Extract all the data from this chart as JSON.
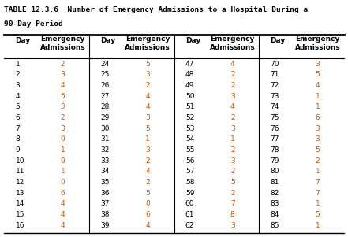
{
  "title_line1": "TABLE 12.3.6  Number of Emergency Admissions to a Hospital During a",
  "title_line2": "90-Day Period",
  "col1_days": [
    1,
    2,
    3,
    4,
    5,
    6,
    7,
    8,
    9,
    10,
    11,
    12,
    13,
    14,
    15,
    16
  ],
  "col1_adm": [
    2,
    3,
    4,
    5,
    3,
    2,
    3,
    0,
    1,
    0,
    1,
    0,
    6,
    4,
    4,
    4
  ],
  "col2_days": [
    24,
    25,
    26,
    27,
    28,
    29,
    30,
    31,
    32,
    33,
    34,
    35,
    36,
    37,
    38,
    39
  ],
  "col2_adm": [
    5,
    3,
    2,
    4,
    4,
    3,
    5,
    1,
    3,
    2,
    4,
    2,
    5,
    0,
    6,
    4
  ],
  "col3_days": [
    47,
    48,
    49,
    50,
    51,
    52,
    53,
    54,
    55,
    56,
    57,
    58,
    59,
    60,
    61,
    62
  ],
  "col3_adm": [
    4,
    2,
    2,
    3,
    4,
    2,
    3,
    1,
    2,
    3,
    2,
    5,
    2,
    7,
    8,
    3
  ],
  "col4_days": [
    70,
    71,
    72,
    73,
    74,
    75,
    76,
    77,
    78,
    79,
    80,
    81,
    82,
    83,
    84,
    85
  ],
  "col4_adm": [
    3,
    5,
    4,
    1,
    1,
    6,
    3,
    3,
    5,
    2,
    1,
    7,
    7,
    1,
    5,
    1
  ],
  "bg_color": "#ffffff",
  "title_color": "#000000",
  "day_color": "#000000",
  "adm_color": "#cc5500",
  "header_fontsize": 6.5,
  "data_fontsize": 6.5,
  "title_fontsize": 6.8,
  "figw": 4.41,
  "figh": 3.01,
  "dpi": 100
}
